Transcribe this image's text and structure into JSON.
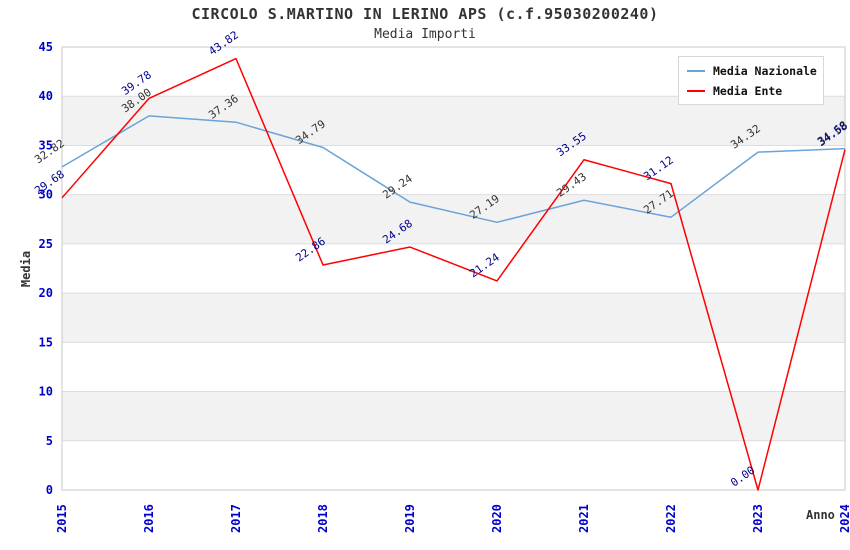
{
  "header": {
    "title": "CIRCOLO S.MARTINO IN LERINO APS (c.f.95030200240)",
    "subtitle": "Media Importi"
  },
  "chart_data": {
    "type": "line",
    "title": "CIRCOLO S.MARTINO IN LERINO APS (c.f.95030200240)",
    "subtitle": "Media Importi",
    "xlabel": "Anno",
    "ylabel": "Media",
    "categories": [
      "2015",
      "2016",
      "2017",
      "2018",
      "2019",
      "2020",
      "2021",
      "2022",
      "2023",
      "2024"
    ],
    "series": [
      {
        "name": "Media Nazionale",
        "color": "#6ba3d8",
        "label_color": "#333333",
        "values": [
          32.82,
          38.0,
          37.36,
          34.79,
          29.24,
          27.19,
          29.43,
          27.71,
          34.32,
          34.68
        ]
      },
      {
        "name": "Media Ente",
        "color": "#ff0000",
        "label_color": "#00008b",
        "values": [
          29.68,
          39.78,
          43.82,
          22.86,
          24.68,
          21.24,
          33.55,
          31.12,
          0.0,
          34.58
        ]
      }
    ],
    "ylim": [
      0,
      45
    ],
    "ytick_step": 5,
    "yticks": [
      0,
      5,
      10,
      15,
      20,
      25,
      30,
      35,
      40,
      45
    ],
    "grid": true,
    "legend_position": "top-right",
    "colors": {
      "tick_label": "#0000cd",
      "band": "#f2f2f2",
      "gridline": "#dddddd",
      "plot_border": "#c8c8c8",
      "background": "#ffffff"
    }
  }
}
